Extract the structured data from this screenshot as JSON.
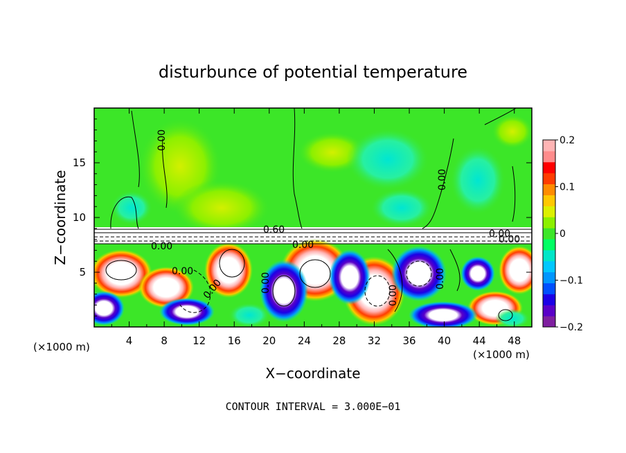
{
  "chart_data": {
    "type": "heatmap",
    "title": "disturbunce of potential temperature",
    "xlabel": "X−coordinate",
    "ylabel": "Z−coordinate",
    "x_unit_left": "(×1000 m)",
    "x_unit_right": "(×1000 m)",
    "xlim": [
      0,
      50
    ],
    "ylim": [
      0,
      20
    ],
    "x_ticks": [
      4,
      8,
      12,
      16,
      20,
      24,
      28,
      32,
      36,
      40,
      44,
      48
    ],
    "x_tick_labels": [
      "4",
      "8",
      "12",
      "16",
      "20",
      "24",
      "28",
      "32",
      "36",
      "40",
      "44",
      "48"
    ],
    "y_ticks": [
      5,
      10,
      15
    ],
    "y_tick_labels": [
      "5",
      "10",
      "15"
    ],
    "colorbar": {
      "range": [
        -0.2,
        0.2
      ],
      "ticks": [
        0.2,
        0.1,
        0,
        -0.1,
        -0.2
      ],
      "tick_labels": [
        "0.2",
        "0.1",
        "0",
        "−0.1",
        "−0.2"
      ],
      "colors": [
        "#7f1fa0",
        "#5a00c8",
        "#1c00e6",
        "#0050ff",
        "#0096ff",
        "#00c8ff",
        "#00e6c8",
        "#00ff64",
        "#3ce628",
        "#8cf000",
        "#dcf000",
        "#ffc800",
        "#ff8c00",
        "#ff3c00",
        "#ff0000",
        "#ff8c8c",
        "#ffb4b4"
      ]
    },
    "contour_labels": [
      "0.00",
      "0.00",
      "0.60",
      "0.00",
      "0.00",
      "0.00",
      "0.00",
      "0.00",
      "0.00",
      "0.00",
      "0.00",
      "0.00"
    ],
    "footer": "CONTOUR INTERVAL = 3.000E−01"
  }
}
